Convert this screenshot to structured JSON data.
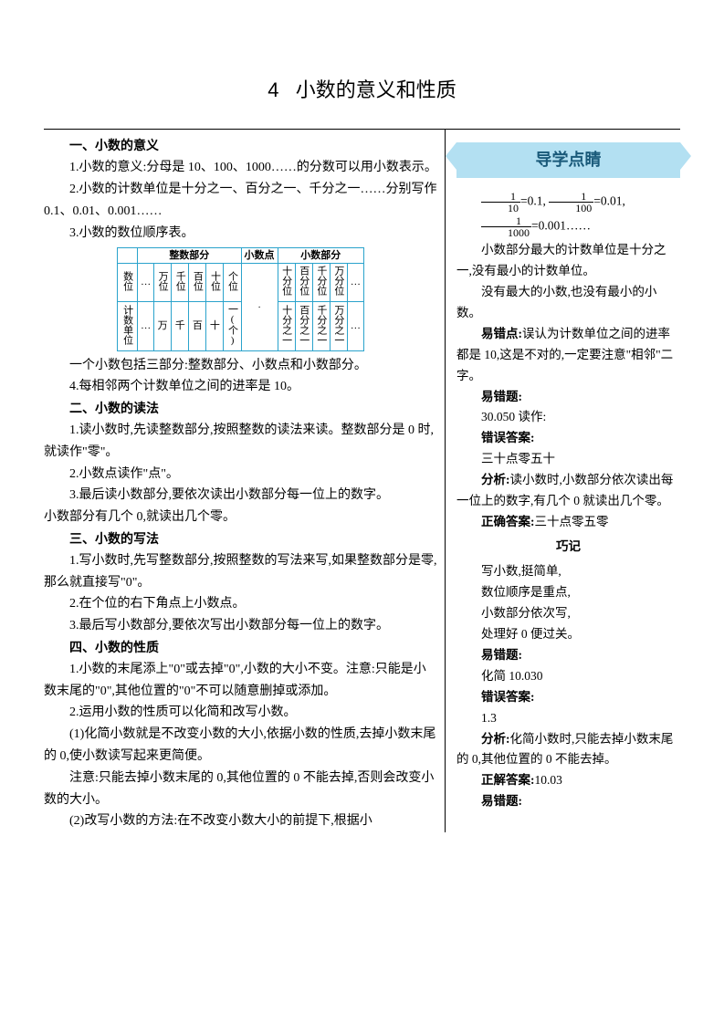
{
  "chapter": {
    "number": "4",
    "title": "小数的意义和性质"
  },
  "main": {
    "s1_head": "一、小数的意义",
    "s1_p1": "1.小数的意义:分母是 10、100、1000……的分数可以用小数表示。",
    "s1_p2": "2.小数的计数单位是十分之一、百分之一、千分之一……分别写作 0.1、0.01、0.001……",
    "s1_p3": "3.小数的数位顺序表。",
    "table": {
      "headers": {
        "int": "整数部分",
        "dot": "小数点",
        "dec": "小数部分"
      },
      "row1_label": "数位",
      "row1_int": [
        "…",
        "万位",
        "千位",
        "百位",
        "十位",
        "个位"
      ],
      "row1_dot": "·",
      "row1_dec": [
        "十分位",
        "百分位",
        "千分位",
        "万分位",
        "…"
      ],
      "row2_label": "计数单位",
      "row2_int": [
        "…",
        "万",
        "千",
        "百",
        "十",
        "一(个)"
      ],
      "row2_dec": [
        "十分之一",
        "百分之一",
        "千分之一",
        "万分之一",
        "…"
      ]
    },
    "s1_p4": "一个小数包括三部分:整数部分、小数点和小数部分。",
    "s1_p5": "4.每相邻两个计数单位之间的进率是 10。",
    "s2_head": "二、小数的读法",
    "s2_p1": "1.读小数时,先读整数部分,按照整数的读法来读。整数部分是 0 时,就读作\"零\"。",
    "s2_p2": "2.小数点读作\"点\"。",
    "s2_p3": "3.最后读小数部分,要依次读出小数部分每一位上的数字。",
    "s2_p4": "小数部分有几个 0,就读出几个零。",
    "s3_head": "三、小数的写法",
    "s3_p1": "1.写小数时,先写整数部分,按照整数的写法来写,如果整数部分是零,那么就直接写\"0\"。",
    "s3_p2": "2.在个位的右下角点上小数点。",
    "s3_p3": "3.最后写小数部分,要依次写出小数部分每一位上的数字。",
    "s4_head": "四、小数的性质",
    "s4_p1": "1.小数的末尾添上\"0\"或去掉\"0\",小数的大小不变。注意:只能是小数末尾的\"0\",其他位置的\"0\"不可以随意删掉或添加。",
    "s4_p2": "2.运用小数的性质可以化简和改写小数。",
    "s4_p3": "(1)化简小数就是不改变小数的大小,依据小数的性质,去掉小数末尾的 0,使小数读写起来更简便。",
    "s4_p4": "注意:只能去掉小数末尾的 0,其他位置的 0 不能去掉,否则会改变小数的大小。",
    "s4_p5": "(2)改写小数的方法:在不改变小数大小的前提下,根据小"
  },
  "side": {
    "banner": "导学点睛",
    "eq1a_n": "1",
    "eq1a_d": "10",
    "eq1a_v": "=0.1,",
    "eq1b_n": "1",
    "eq1b_d": "100",
    "eq1b_v": "=0.01,",
    "eq2_n": "1",
    "eq2_d": "1000",
    "eq2_v": "=0.001……",
    "p1": "小数部分最大的计数单位是十分之一,没有最小的计数单位。",
    "p2": "没有最大的小数,也没有最小的小数。",
    "p3_label": "易错点:",
    "p3": "误认为计数单位之间的进率都是 10,这是不对的,一定要注意\"相邻\"二字。",
    "err1_label": "易错题:",
    "err1_q": "30.050 读作:",
    "err1_wrong_label": "错误答案:",
    "err1_wrong": "三十点零五十",
    "err1_ana_label": "分析:",
    "err1_ana": "读小数时,小数部分依次读出每一位上的数字,有几个 0 就读出几个零。",
    "err1_right_label": "正确答案:",
    "err1_right": "三十点零五零",
    "qiaoji": "巧记",
    "qj1": "写小数,挺简单,",
    "qj2": "数位顺序是重点,",
    "qj3": "小数部分依次写,",
    "qj4": "处理好 0 便过关。",
    "err2_label": "易错题:",
    "err2_q": "化简 10.030",
    "err2_wrong_label": "错误答案:",
    "err2_wrong": "1.3",
    "err2_ana_label": "分析:",
    "err2_ana": "化简小数时,只能去掉小数末尾的 0,其他位置的 0 不能去掉。",
    "err2_right_label": "正解答案:",
    "err2_right": "10.03",
    "err3_label": "易错题:"
  },
  "colors": {
    "table_border": "#2aa3cc",
    "banner_bg": "#b3e0f2",
    "banner_fg": "#1a5a7a"
  }
}
